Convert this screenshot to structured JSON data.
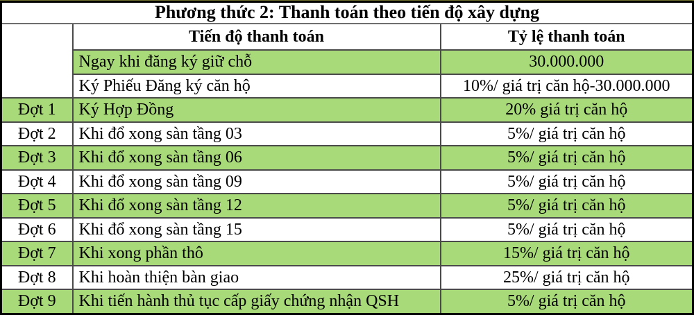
{
  "title": "Phương thức 2: Thanh toán theo tiến độ xây dựng",
  "columns": {
    "progress": "Tiến độ thanh toán",
    "ratio": "Tỷ lệ thanh toán"
  },
  "rows": [
    {
      "stage": "",
      "progress": "Ngay khi đăng ký giữ chỗ",
      "ratio": "30.000.000"
    },
    {
      "stage": "",
      "progress": "Ký Phiếu Đăng ký căn hộ",
      "ratio": "10%/ giá trị căn hộ-30.000.000"
    },
    {
      "stage": "Đợt 1",
      "progress": "Ký Hợp Đồng",
      "ratio": "20% giá trị căn hộ"
    },
    {
      "stage": "Đợt 2",
      "progress": "Khi đổ xong sàn tầng 03",
      "ratio": "5%/ giá trị căn hộ"
    },
    {
      "stage": "Đợt 3",
      "progress": "Khi đổ xong sàn tầng 06",
      "ratio": "5%/ giá trị căn hộ"
    },
    {
      "stage": "Đợt 4",
      "progress": "Khi đổ xong sàn tầng 09",
      "ratio": "5%/ giá trị căn hộ"
    },
    {
      "stage": "Đợt 5",
      "progress": "Khi đổ xong sàn tầng 12",
      "ratio": "5%/ giá trị căn hộ"
    },
    {
      "stage": "Đợt 6",
      "progress": "Khi đổ xong sàn tầng 15",
      "ratio": "5%/ giá trị căn hộ"
    },
    {
      "stage": "Đợt 7",
      "progress": "Khi xong phần thô",
      "ratio": "15%/ giá trị căn hộ"
    },
    {
      "stage": "Đợt 8",
      "progress": "Khi hoàn thiện bàn giao",
      "ratio": "25%/ giá trị căn hộ"
    },
    {
      "stage": "Đợt 9",
      "progress": "Khi tiến hành thủ tục cấp giấy chứng nhận QSH",
      "ratio": "5%/ giá trị căn hộ"
    }
  ],
  "colors": {
    "row_green": "#a9da7a",
    "border_outer": "#000000",
    "border_inner": "#4a4a4a",
    "text": "#000000"
  }
}
